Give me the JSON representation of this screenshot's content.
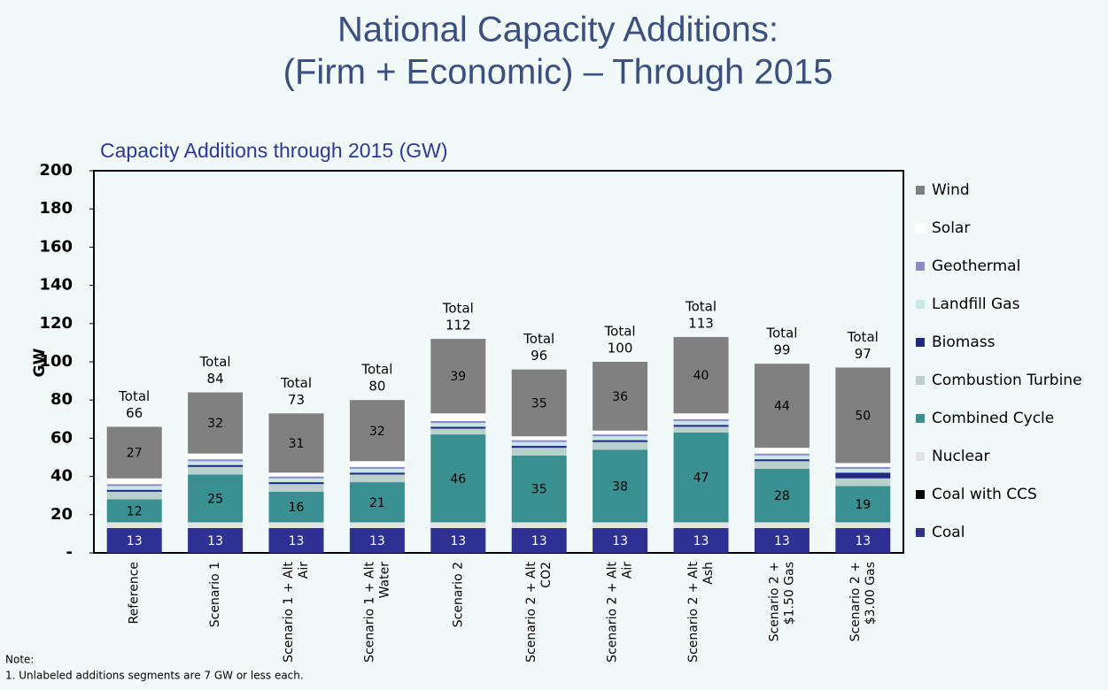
{
  "chart_data": {
    "type": "stacked_bar",
    "title": [
      "National Capacity Additions:",
      "(Firm + Economic) – Through 2015"
    ],
    "subtitle": "Capacity Additions through 2015 (GW)",
    "y_label": "GW",
    "categories": [
      "Reference",
      "Scenario 1",
      "Scenario 1 + Alt\nAir",
      "Scenario 1 + Alt\nWater",
      "Scenario 2",
      "Scenario 2 + Alt\nCO2",
      "Scenario 2 + Alt\nAir",
      "Scenario 2 + Alt\nAsh",
      "Scenario 2 +\n$1.50 Gas",
      "Scenario 2 +\n$3.00 Gas"
    ],
    "series": [
      {
        "name": "Coal",
        "color": "#2e3192",
        "values": [
          13,
          13,
          13,
          13,
          13,
          13,
          13,
          13,
          13,
          13
        ]
      },
      {
        "name": "Coal with CCS",
        "color": "#000000",
        "values": [
          0,
          0,
          0,
          0,
          0,
          0,
          0,
          0,
          0,
          0
        ]
      },
      {
        "name": "Nuclear",
        "color": "#e2e2e4",
        "values": [
          3,
          3,
          3,
          3,
          3,
          3,
          3,
          3,
          3,
          3
        ]
      },
      {
        "name": "Combined Cycle",
        "color": "#3a9090",
        "values": [
          12,
          25,
          16,
          21,
          46,
          35,
          38,
          47,
          28,
          19
        ]
      },
      {
        "name": "Combustion Turbine",
        "color": "#b9d0cd",
        "values": [
          4,
          4,
          4,
          4,
          3,
          4,
          4,
          3,
          4,
          4
        ]
      },
      {
        "name": "Biomass",
        "color": "#1f2a80",
        "values": [
          1,
          1,
          1,
          1,
          1,
          1,
          1,
          1,
          1,
          3
        ]
      },
      {
        "name": "Landfill Gas",
        "color": "#c9e6e8",
        "values": [
          2,
          2,
          2,
          2,
          2,
          2,
          2,
          2,
          2,
          2
        ]
      },
      {
        "name": "Geothermal",
        "color": "#8c8cc8",
        "values": [
          1,
          1,
          1,
          1,
          1,
          1,
          1,
          1,
          1,
          1
        ]
      },
      {
        "name": "Solar",
        "color": "#ffffff",
        "values": [
          3,
          3,
          2,
          3,
          4,
          2,
          2,
          3,
          3,
          2
        ]
      },
      {
        "name": "Wind",
        "color": "#808080",
        "values": [
          27,
          32,
          31,
          32,
          39,
          35,
          36,
          40,
          44,
          50
        ]
      }
    ],
    "total_label": "Total",
    "totals": [
      66,
      84,
      73,
      80,
      112,
      96,
      100,
      113,
      99,
      97
    ],
    "ylim": [
      0,
      200
    ],
    "yticks": [
      {
        "value": 0,
        "label": "-"
      },
      20,
      40,
      60,
      80,
      100,
      120,
      140,
      160,
      180,
      200
    ],
    "grid": false,
    "legend": "right",
    "notes": [
      "Note:",
      "1.    Unlabeled additions segments  are 7 GW or less each."
    ]
  }
}
